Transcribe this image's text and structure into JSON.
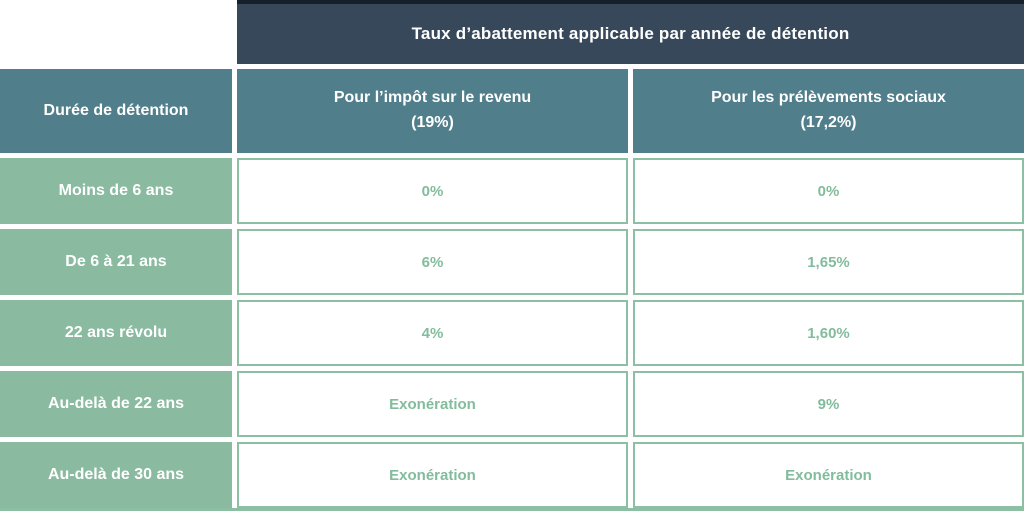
{
  "chart_data": {
    "type": "table",
    "title": "Taux d’abattement applicable par année de détention",
    "columns": [
      "Durée de détention",
      "Pour l’impôt sur le revenu (19%)",
      "Pour les prélèvements sociaux (17,2%)"
    ],
    "rows": [
      [
        "Moins de 6 ans",
        "0%",
        "0%"
      ],
      [
        "De 6 à 21 ans",
        "6%",
        "1,65%"
      ],
      [
        "22 ans révolu",
        "4%",
        "1,60%"
      ],
      [
        "Au-delà de 22 ans",
        "Exonération",
        "9%"
      ],
      [
        "Au-delà de 30 ans",
        "Exonération",
        "Exonération"
      ]
    ]
  },
  "table": {
    "title": "Taux d’abattement applicable par année de détention",
    "columns": {
      "duration": "Durée de détention",
      "income_tax": {
        "label": "Pour l’impôt sur le revenu",
        "sub": "(19%)"
      },
      "social": {
        "label": "Pour les prélèvements sociaux",
        "sub": "(17,2%)"
      }
    },
    "rows": [
      {
        "duration": "Moins de 6 ans",
        "ir": "0%",
        "ps": "0%"
      },
      {
        "duration": "De 6 à 21 ans",
        "ir": "6%",
        "ps": "1,65%"
      },
      {
        "duration": "22 ans révolu",
        "ir": "4%",
        "ps": "1,60%"
      },
      {
        "duration": "Au-delà de 22 ans",
        "ir": "Exonération",
        "ps": "9%"
      },
      {
        "duration": "Au-delà de 30 ans",
        "ir": "Exonération",
        "ps": "Exonération"
      }
    ]
  },
  "colors": {
    "dark_header_bg": "#36485a",
    "dark_header_top_edge": "#16202a",
    "teal_header_bg": "#517e8b",
    "green_row_bg": "#8abba0",
    "value_text_green": "#82bc9c",
    "cell_border_green": "#8cbfa3",
    "cell_bg": "#ffffff",
    "header_text": "#ffffff"
  }
}
